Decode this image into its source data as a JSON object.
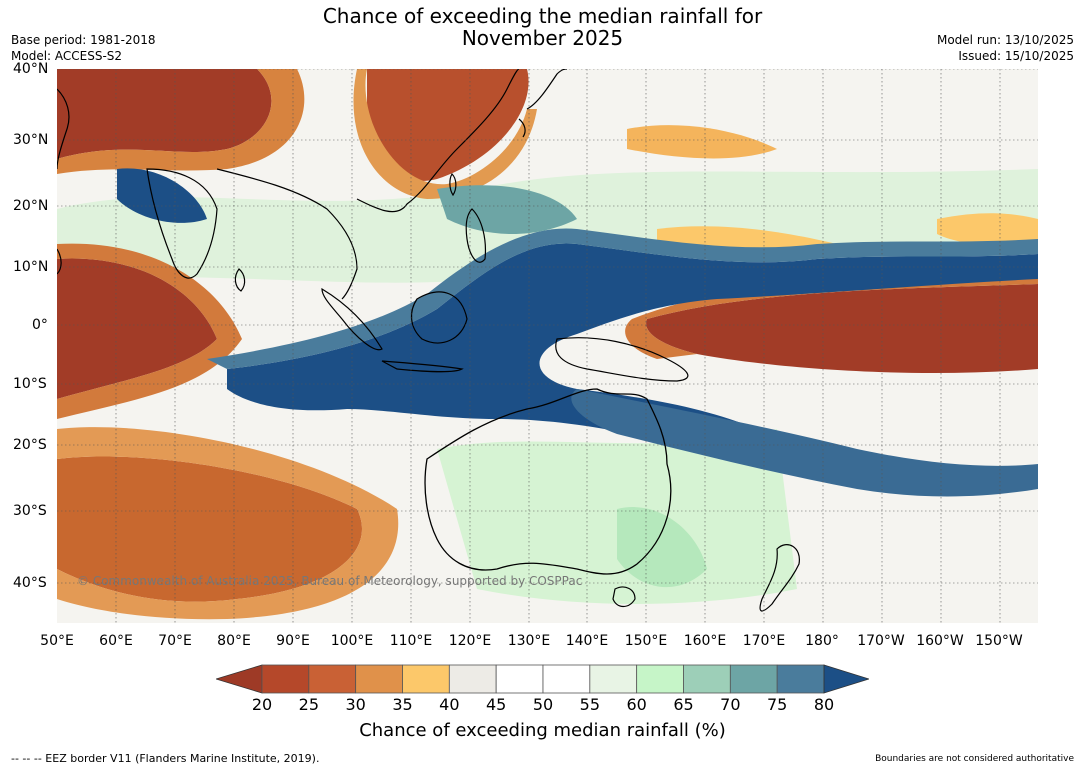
{
  "title": {
    "line1": "Chance of exceeding the median rainfall for",
    "line2": "November 2025"
  },
  "meta_left": {
    "base_period": "Base period: 1981-2018",
    "model": "Model: ACCESS-S2"
  },
  "meta_right": {
    "model_run": "Model run: 13/10/2025",
    "issued": "Issued: 15/10/2025"
  },
  "lat_labels": [
    "40°N",
    "30°N",
    "20°N",
    "10°N",
    "0°",
    "10°S",
    "20°S",
    "30°S",
    "40°S"
  ],
  "lon_labels": [
    "50°E",
    "60°E",
    "70°E",
    "80°E",
    "90°E",
    "100°E",
    "110°E",
    "120°E",
    "130°E",
    "140°E",
    "150°E",
    "160°E",
    "170°E",
    "180°",
    "170°W",
    "160°W",
    "150°W"
  ],
  "copyright": "© Commonwealth of Australia 2025, Bureau of Meteorology, supported by COSPPac",
  "colorbar": {
    "title": "Chance of exceeding median rainfall (%)",
    "ticks": [
      "20",
      "25",
      "30",
      "35",
      "40",
      "45",
      "50",
      "55",
      "60",
      "65",
      "70",
      "75",
      "80"
    ],
    "colors": [
      "#9e3a26",
      "#b5482a",
      "#c96135",
      "#e0914a",
      "#fcc86a",
      "#edebe6",
      "#ffffff",
      "#ffffff",
      "#e8f4e5",
      "#c6f5c8",
      "#9dcfb8",
      "#6da5a5",
      "#4a7c9c",
      "#1c4f86"
    ]
  },
  "footer_left": "--  --  -- EEZ border V11 (Flanders Marine Institute, 2019).",
  "footer_right": "Boundaries are not considered authoritative"
}
